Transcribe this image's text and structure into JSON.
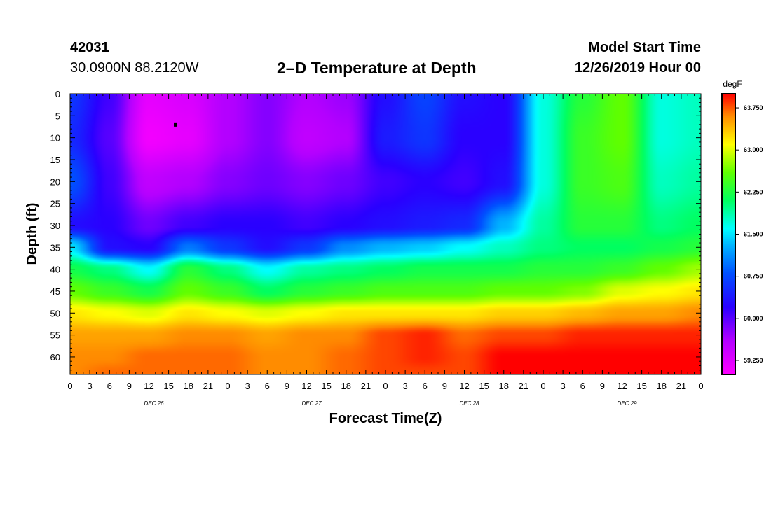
{
  "header": {
    "station_id": "42031",
    "station_coords": "30.0900N 88.2120W",
    "title": "2–D Temperature at Depth",
    "model_start_label": "Model Start Time",
    "model_start_value": "12/26/2019 Hour 00"
  },
  "chart_data": {
    "type": "heatmap",
    "title": "2–D Temperature at Depth",
    "xlabel": "Forecast Time(Z)",
    "ylabel": "Depth (ft)",
    "x_range": [
      0,
      96
    ],
    "y_range": [
      0,
      64
    ],
    "x_tick_labels": [
      "0",
      "3",
      "6",
      "9",
      "12",
      "15",
      "18",
      "21",
      "0",
      "3",
      "6",
      "9",
      "12",
      "15",
      "18",
      "21",
      "0",
      "3",
      "6",
      "9",
      "12",
      "15",
      "18",
      "21",
      "0",
      "3",
      "6",
      "9",
      "12",
      "15",
      "18",
      "21",
      "0"
    ],
    "x_date_labels": [
      "DEC 26",
      "DEC 27",
      "DEC 28",
      "DEC 29"
    ],
    "y_ticks": [
      0,
      5,
      10,
      15,
      20,
      25,
      30,
      35,
      40,
      45,
      50,
      55,
      60
    ],
    "colorbar": {
      "unit": "degF",
      "min": 59.0,
      "max": 64.0,
      "tick_values": [
        59.25,
        60.0,
        60.75,
        61.5,
        62.25,
        63.0,
        63.75
      ],
      "tick_labels": [
        "59.250",
        "60.000",
        "60.750",
        "61.500",
        "62.250",
        "63.000",
        "63.750"
      ],
      "stops": [
        {
          "value": 59.0,
          "color": "#ff00ff"
        },
        {
          "value": 59.6,
          "color": "#b400ff"
        },
        {
          "value": 60.2,
          "color": "#2a00ff"
        },
        {
          "value": 60.8,
          "color": "#0050ff"
        },
        {
          "value": 61.3,
          "color": "#00b4ff"
        },
        {
          "value": 61.6,
          "color": "#00ffff"
        },
        {
          "value": 62.1,
          "color": "#00ff60"
        },
        {
          "value": 62.6,
          "color": "#60ff00"
        },
        {
          "value": 63.1,
          "color": "#ffff00"
        },
        {
          "value": 63.6,
          "color": "#ff8c00"
        },
        {
          "value": 64.0,
          "color": "#ff0000"
        }
      ]
    },
    "grid_hours": [
      0,
      6,
      12,
      18,
      24,
      30,
      36,
      42,
      48,
      54,
      60,
      66,
      72,
      78,
      84,
      90,
      96
    ],
    "grid_depths": [
      0,
      10,
      20,
      30,
      35,
      40,
      45,
      50,
      55,
      60,
      64
    ],
    "values": [
      [
        60.6,
        60.1,
        59.2,
        59.3,
        59.6,
        59.8,
        59.6,
        59.7,
        60.3,
        60.7,
        60.3,
        60.2,
        61.7,
        62.3,
        62.6,
        61.7,
        61.8
      ],
      [
        60.5,
        60.0,
        59.1,
        59.2,
        59.6,
        59.8,
        59.5,
        59.6,
        60.4,
        60.6,
        60.2,
        60.2,
        61.7,
        62.4,
        62.6,
        61.7,
        61.8
      ],
      [
        60.8,
        60.1,
        59.5,
        59.6,
        59.8,
        59.9,
        59.8,
        59.9,
        60.1,
        60.2,
        60.1,
        60.3,
        61.7,
        62.4,
        62.5,
        61.8,
        61.9
      ],
      [
        60.3,
        60.2,
        59.9,
        60.1,
        60.2,
        60.2,
        60.1,
        60.2,
        60.3,
        60.4,
        60.5,
        61.3,
        61.9,
        62.3,
        62.3,
        62.0,
        62.1
      ],
      [
        61.5,
        60.3,
        60.2,
        61.0,
        60.6,
        60.3,
        60.6,
        61.1,
        61.3,
        61.4,
        61.6,
        61.8,
        62.0,
        62.1,
        62.1,
        62.2,
        62.3
      ],
      [
        62.2,
        62.0,
        61.6,
        62.3,
        62.0,
        61.6,
        61.9,
        62.0,
        62.1,
        62.2,
        62.2,
        62.2,
        62.3,
        62.3,
        62.4,
        62.6,
        62.8
      ],
      [
        62.6,
        62.4,
        62.2,
        62.6,
        62.4,
        62.1,
        62.3,
        62.4,
        62.5,
        62.5,
        62.5,
        62.6,
        62.6,
        62.7,
        63.0,
        63.1,
        63.2
      ],
      [
        63.2,
        63.1,
        63.0,
        63.2,
        63.1,
        63.0,
        63.1,
        63.2,
        63.2,
        63.2,
        63.2,
        63.3,
        63.3,
        63.4,
        63.5,
        63.5,
        63.6
      ],
      [
        63.5,
        63.5,
        63.5,
        63.6,
        63.6,
        63.5,
        63.6,
        63.6,
        63.8,
        63.9,
        63.7,
        63.8,
        63.8,
        63.9,
        63.9,
        63.9,
        63.9
      ],
      [
        63.6,
        63.6,
        63.7,
        63.7,
        63.7,
        63.6,
        63.6,
        63.7,
        63.8,
        63.9,
        63.8,
        64.0,
        64.0,
        64.0,
        64.0,
        64.0,
        64.0
      ],
      [
        63.6,
        63.7,
        63.7,
        63.7,
        63.7,
        63.6,
        63.6,
        63.7,
        63.8,
        63.8,
        63.8,
        64.0,
        64.0,
        64.0,
        64.0,
        64.0,
        64.0
      ]
    ],
    "marker": {
      "hour": 16,
      "depth": 7
    }
  }
}
